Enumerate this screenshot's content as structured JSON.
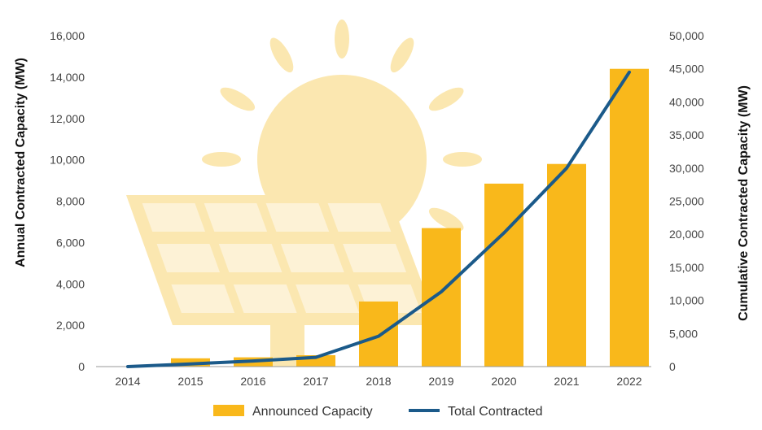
{
  "colors": {
    "bar": "#F9B81B",
    "line": "#1B5A8A",
    "decor": "#FBE7B0",
    "decor_panel": "#FDF2D6",
    "axis": "#999999"
  },
  "decor_icon": "sun-and-solar-panel-illustration",
  "chart_data": {
    "type": "bar",
    "categories": [
      "2014",
      "2015",
      "2016",
      "2017",
      "2018",
      "2019",
      "2020",
      "2021",
      "2022"
    ],
    "series": [
      {
        "name": "Announced Capacity",
        "type": "bar",
        "axis": "left",
        "values": [
          0,
          400,
          450,
          550,
          3150,
          6700,
          8850,
          9800,
          14400
        ]
      },
      {
        "name": "Total Contracted",
        "type": "line",
        "axis": "right",
        "values": [
          0,
          400,
          850,
          1400,
          4600,
          11300,
          20200,
          30000,
          44500
        ]
      }
    ],
    "ylabel": "Annual Contracted Capacity (MW)",
    "y2label": "Cumulative Contracted Capacity (MW)",
    "ylim": [
      0,
      16000
    ],
    "y2lim": [
      0,
      50000
    ],
    "yticks": [
      "0",
      "2,000",
      "4,000",
      "6,000",
      "8,000",
      "10,000",
      "12,000",
      "14,000",
      "16,000"
    ],
    "y2ticks": [
      "0",
      "5,000",
      "10,000",
      "15,000",
      "20,000",
      "25,000",
      "30,000",
      "35,000",
      "40,000",
      "45,000",
      "50,000"
    ],
    "legend": [
      "Announced Capacity",
      "Total Contracted"
    ],
    "legend_position": "bottom-center",
    "grid": false
  }
}
